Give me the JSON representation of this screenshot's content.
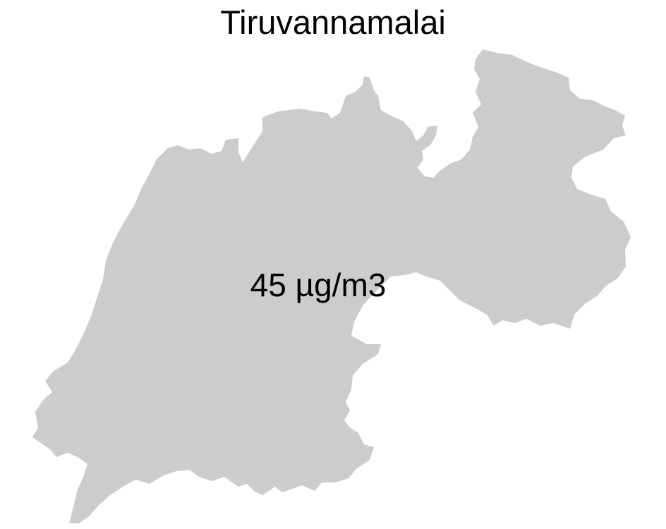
{
  "map": {
    "title": "Tiruvannamalai",
    "region": {
      "name": "Tiruvannamalai",
      "fill_color": "#cccccc",
      "value_label": "45 µg/m3",
      "value": 45,
      "unit": "µg/m3"
    },
    "background_color": "#ffffff"
  }
}
